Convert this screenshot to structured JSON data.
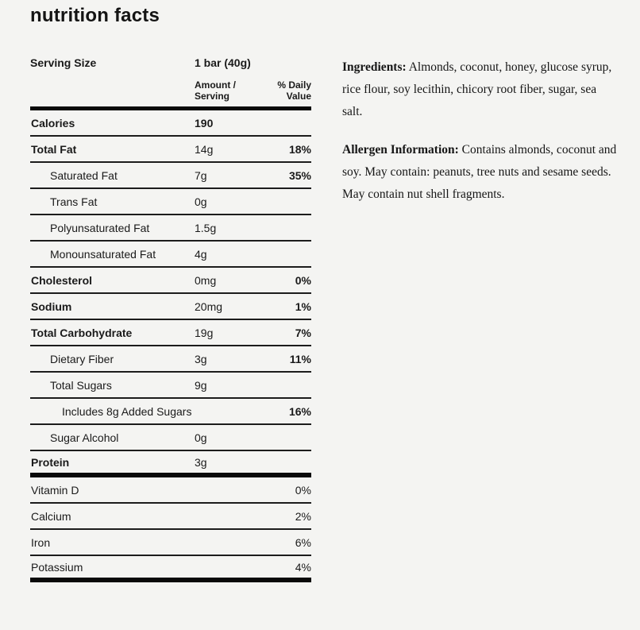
{
  "title": "nutrition facts",
  "colors": {
    "background": "#f4f4f2",
    "text": "#1a1a1a",
    "thin_rule": "#1c1c1c",
    "thick_rule": "#0a0a0a"
  },
  "table": {
    "serving_label": "Serving Size",
    "serving_value": "1 bar (40g)",
    "col_amount_header": "Amount /\nServing",
    "col_daily_header": "% Daily\nValue",
    "rows": [
      {
        "label": "Calories",
        "amount": "190",
        "pct": "",
        "label_bold": true,
        "amount_bold": true,
        "pct_bold": false,
        "indent": 0,
        "divider": "thin"
      },
      {
        "label": "Total Fat",
        "amount": "14g",
        "pct": "18%",
        "label_bold": true,
        "amount_bold": false,
        "pct_bold": true,
        "indent": 0,
        "divider": "thin"
      },
      {
        "label": "Saturated Fat",
        "amount": "7g",
        "pct": "35%",
        "label_bold": false,
        "amount_bold": false,
        "pct_bold": true,
        "indent": 1,
        "divider": "thin"
      },
      {
        "label": "Trans Fat",
        "amount": "0g",
        "pct": "",
        "label_bold": false,
        "amount_bold": false,
        "pct_bold": false,
        "indent": 1,
        "divider": "thin"
      },
      {
        "label": "Polyunsaturated Fat",
        "amount": "1.5g",
        "pct": "",
        "label_bold": false,
        "amount_bold": false,
        "pct_bold": false,
        "indent": 1,
        "divider": "thin"
      },
      {
        "label": "Monounsaturated Fat",
        "amount": "4g",
        "pct": "",
        "label_bold": false,
        "amount_bold": false,
        "pct_bold": false,
        "indent": 1,
        "divider": "thin"
      },
      {
        "label": "Cholesterol",
        "amount": "0mg",
        "pct": "0%",
        "label_bold": true,
        "amount_bold": false,
        "pct_bold": true,
        "indent": 0,
        "divider": "thin"
      },
      {
        "label": "Sodium",
        "amount": "20mg",
        "pct": "1%",
        "label_bold": true,
        "amount_bold": false,
        "pct_bold": true,
        "indent": 0,
        "divider": "thin"
      },
      {
        "label": "Total Carbohydrate",
        "amount": "19g",
        "pct": "7%",
        "label_bold": true,
        "amount_bold": false,
        "pct_bold": true,
        "indent": 0,
        "divider": "thin"
      },
      {
        "label": "Dietary Fiber",
        "amount": "3g",
        "pct": "11%",
        "label_bold": false,
        "amount_bold": false,
        "pct_bold": true,
        "indent": 1,
        "divider": "thin"
      },
      {
        "label": "Total Sugars",
        "amount": "9g",
        "pct": "",
        "label_bold": false,
        "amount_bold": false,
        "pct_bold": false,
        "indent": 1,
        "divider": "thin"
      },
      {
        "label": "Includes 8g Added Sugars",
        "amount": "",
        "pct": "16%",
        "label_bold": false,
        "amount_bold": false,
        "pct_bold": true,
        "indent": 2,
        "divider": "thin"
      },
      {
        "label": "Sugar Alcohol",
        "amount": "0g",
        "pct": "",
        "label_bold": false,
        "amount_bold": false,
        "pct_bold": false,
        "indent": 1,
        "divider": "thin"
      },
      {
        "label": "Protein",
        "amount": "3g",
        "pct": "",
        "label_bold": true,
        "amount_bold": false,
        "pct_bold": false,
        "indent": 0,
        "divider": "thick"
      },
      {
        "label": "Vitamin D",
        "amount": "",
        "pct": "0%",
        "label_bold": false,
        "amount_bold": false,
        "pct_bold": false,
        "indent": 0,
        "divider": "thin"
      },
      {
        "label": "Calcium",
        "amount": "",
        "pct": "2%",
        "label_bold": false,
        "amount_bold": false,
        "pct_bold": false,
        "indent": 0,
        "divider": "thin"
      },
      {
        "label": "Iron",
        "amount": "",
        "pct": "6%",
        "label_bold": false,
        "amount_bold": false,
        "pct_bold": false,
        "indent": 0,
        "divider": "thin"
      },
      {
        "label": "Potassium",
        "amount": "",
        "pct": "4%",
        "label_bold": false,
        "amount_bold": false,
        "pct_bold": false,
        "indent": 0,
        "divider": "thick"
      }
    ]
  },
  "info": {
    "paragraphs": [
      {
        "label": "Ingredients:",
        "text": " Almonds, coconut, honey, glucose syrup, rice flour, soy lecithin, chicory root fiber, sugar, sea salt."
      },
      {
        "label": "Allergen Information:",
        "text": " Contains almonds, coconut and soy. May contain: peanuts, tree nuts and sesame seeds. May contain nut shell fragments."
      }
    ]
  }
}
